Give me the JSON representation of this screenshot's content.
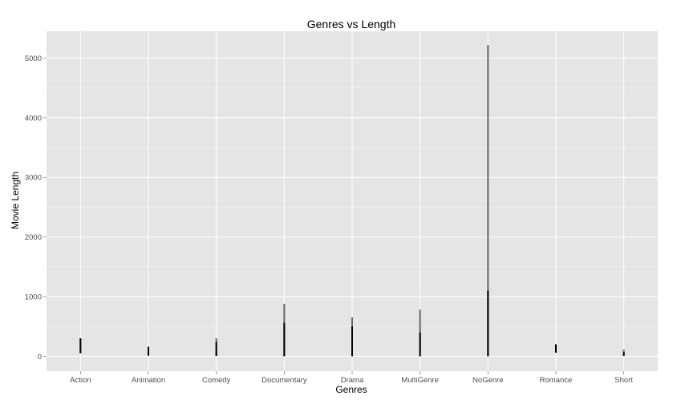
{
  "chart_data": {
    "type": "bar",
    "title": "Genres vs Length",
    "xlabel": "Genres",
    "ylabel": "Movie Length",
    "categories": [
      "Action",
      "Animation",
      "Comedy",
      "Documentary",
      "Drama",
      "MultiGenre",
      "NoGenre",
      "Romance",
      "Short"
    ],
    "series": [
      {
        "values": [
          {
            "min": 50,
            "dark_max": 300,
            "light_max": 300
          },
          {
            "min": 10,
            "dark_max": 150,
            "light_max": 165
          },
          {
            "min": 5,
            "dark_max": 240,
            "light_max": 300
          },
          {
            "min": 0,
            "dark_max": 560,
            "light_max": 880
          },
          {
            "min": 0,
            "dark_max": 500,
            "light_max": 650
          },
          {
            "min": 0,
            "dark_max": 400,
            "light_max": 780
          },
          {
            "min": 0,
            "dark_max": 1100,
            "light_max": 5220
          },
          {
            "min": 60,
            "dark_max": 200,
            "light_max": 200
          },
          {
            "min": 5,
            "dark_max": 70,
            "light_max": 110
          }
        ]
      }
    ],
    "ylim": [
      -250,
      5450
    ],
    "yticks": [
      0,
      1000,
      2000,
      3000,
      4000,
      5000
    ],
    "grid": true,
    "colors": {
      "panel_background": "#e5e5e5",
      "grid_major": "#ffffff",
      "grid_minor": "#f2f2f2",
      "bar_dark": "#000000",
      "bar_light": "#666666"
    }
  }
}
